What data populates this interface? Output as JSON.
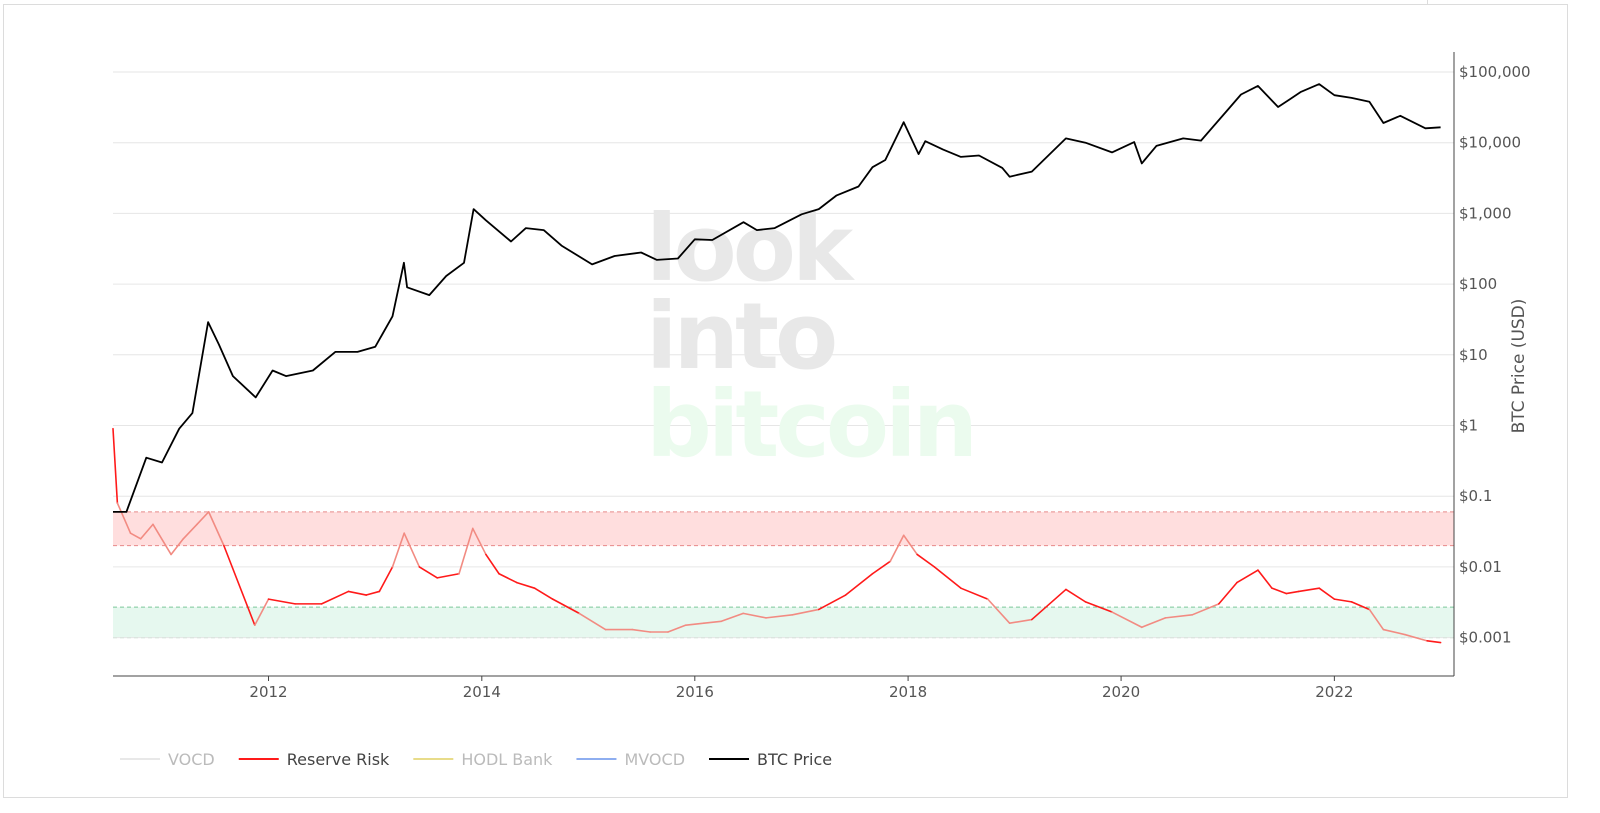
{
  "watermark": {
    "line1": "look",
    "line2": "into",
    "line3": "bitcoin"
  },
  "colors": {
    "btc_price": "#000000",
    "reserve_risk": "#ff1a1a",
    "reserve_risk_light": "#f28b82",
    "hodl_bank": "#e8dc8a",
    "mvocd": "#8eaef0",
    "vocd": "#e8e8e8",
    "red_band": "#ffdede",
    "green_band": "#e6f8ef",
    "grid": "#e6e6e6"
  },
  "chart_data": {
    "type": "line",
    "title": "",
    "xlabel": "",
    "ylabel": "BTC Price (USD)",
    "y_scale": "log",
    "ylim": [
      0.0005,
      200000
    ],
    "xlim": [
      "2010-07-17",
      "2023-02-15"
    ],
    "x_ticks": [
      "2012",
      "2014",
      "2016",
      "2018",
      "2020",
      "2022"
    ],
    "y_ticks": [
      "$100,000",
      "$10,000",
      "$1,000",
      "$100",
      "$10",
      "$1",
      "$0.1",
      "$0.01",
      "$0.001"
    ],
    "bands": [
      {
        "name": "high-risk",
        "from": 0.02,
        "to": 0.06
      },
      {
        "name": "low-risk",
        "from": 0.001,
        "to": 0.0027
      }
    ],
    "legend": {
      "placement": "bottom-left"
    },
    "series": [
      {
        "name": "VOCD",
        "visible": false,
        "x": [],
        "y": []
      },
      {
        "name": "Reserve Risk",
        "x": [
          "2010-07-17",
          "2010-08-01",
          "2010-09-15",
          "2010-10-20",
          "2010-12-01",
          "2011-02-01",
          "2011-03-15",
          "2011-05-01",
          "2011-06-10",
          "2011-08-01",
          "2011-11-15",
          "2012-01-01",
          "2012-04-01",
          "2012-07-01",
          "2012-10-01",
          "2012-12-01",
          "2013-01-15",
          "2013-03-01",
          "2013-04-10",
          "2013-06-01",
          "2013-08-01",
          "2013-10-15",
          "2013-12-01",
          "2014-01-15",
          "2014-03-01",
          "2014-05-01",
          "2014-07-01",
          "2014-09-01",
          "2014-12-01",
          "2015-03-01",
          "2015-06-01",
          "2015-08-01",
          "2015-10-01",
          "2015-12-01",
          "2016-02-01",
          "2016-04-01",
          "2016-06-15",
          "2016-09-01",
          "2016-12-01",
          "2017-03-01",
          "2017-06-01",
          "2017-09-01",
          "2017-11-01",
          "2017-12-17",
          "2018-02-01",
          "2018-04-01",
          "2018-07-01",
          "2018-10-01",
          "2018-12-15",
          "2019-03-01",
          "2019-06-26",
          "2019-09-01",
          "2019-12-01",
          "2020-03-12",
          "2020-06-01",
          "2020-09-01",
          "2020-12-01",
          "2021-02-01",
          "2021-04-14",
          "2021-06-01",
          "2021-07-20",
          "2021-09-01",
          "2021-11-10",
          "2022-01-01",
          "2022-03-01",
          "2022-05-01",
          "2022-06-18",
          "2022-09-01",
          "2022-11-15",
          "2022-12-31"
        ],
        "y": [
          0.9,
          0.08,
          0.03,
          0.025,
          0.04,
          0.015,
          0.025,
          0.04,
          0.06,
          0.02,
          0.0015,
          0.0035,
          0.003,
          0.003,
          0.0045,
          0.004,
          0.0045,
          0.01,
          0.03,
          0.01,
          0.007,
          0.008,
          0.035,
          0.015,
          0.008,
          0.006,
          0.005,
          0.0035,
          0.0022,
          0.0013,
          0.0013,
          0.0012,
          0.0012,
          0.0015,
          0.0016,
          0.0017,
          0.0022,
          0.0019,
          0.0021,
          0.0025,
          0.004,
          0.008,
          0.012,
          0.028,
          0.015,
          0.01,
          0.005,
          0.0035,
          0.0016,
          0.0018,
          0.0048,
          0.0032,
          0.0023,
          0.0014,
          0.0019,
          0.0021,
          0.003,
          0.006,
          0.009,
          0.005,
          0.0042,
          0.0045,
          0.005,
          0.0035,
          0.0032,
          0.0025,
          0.0013,
          0.0011,
          0.0009,
          0.00085
        ]
      },
      {
        "name": "HODL Bank",
        "visible": false,
        "x": [],
        "y": []
      },
      {
        "name": "MVOCD",
        "visible": false,
        "x": [],
        "y": []
      },
      {
        "name": "BTC Price",
        "x": [
          "2010-07-17",
          "2010-09-01",
          "2010-11-08",
          "2011-01-01",
          "2011-03-01",
          "2011-04-15",
          "2011-06-08",
          "2011-07-15",
          "2011-09-01",
          "2011-11-18",
          "2012-01-15",
          "2012-03-01",
          "2012-06-01",
          "2012-08-17",
          "2012-11-01",
          "2013-01-01",
          "2013-03-01",
          "2013-04-09",
          "2013-04-20",
          "2013-07-05",
          "2013-09-01",
          "2013-11-01",
          "2013-12-04",
          "2014-01-15",
          "2014-04-11",
          "2014-06-01",
          "2014-08-01",
          "2014-10-01",
          "2015-01-14",
          "2015-04-01",
          "2015-07-01",
          "2015-08-24",
          "2015-11-04",
          "2016-01-01",
          "2016-03-01",
          "2016-06-16",
          "2016-08-01",
          "2016-10-01",
          "2017-01-01",
          "2017-03-01",
          "2017-05-01",
          "2017-07-15",
          "2017-09-01",
          "2017-10-15",
          "2017-12-17",
          "2018-02-06",
          "2018-03-01",
          "2018-05-01",
          "2018-07-01",
          "2018-09-01",
          "2018-11-20",
          "2018-12-15",
          "2019-03-01",
          "2019-06-26",
          "2019-09-01",
          "2019-12-01",
          "2020-02-15",
          "2020-03-12",
          "2020-05-01",
          "2020-08-01",
          "2020-10-01",
          "2020-12-31",
          "2021-02-15",
          "2021-04-14",
          "2021-06-22",
          "2021-08-01",
          "2021-09-07",
          "2021-11-10",
          "2022-01-01",
          "2022-03-01",
          "2022-05-01",
          "2022-06-18",
          "2022-08-15",
          "2022-11-09",
          "2022-12-31"
        ],
        "y": [
          0.06,
          0.06,
          0.35,
          0.3,
          0.9,
          1.5,
          29,
          14,
          5,
          2.5,
          6,
          5,
          6,
          11,
          11,
          13,
          35,
          200,
          90,
          70,
          130,
          200,
          1150,
          800,
          400,
          620,
          580,
          350,
          190,
          250,
          280,
          220,
          230,
          430,
          420,
          750,
          580,
          620,
          970,
          1150,
          1800,
          2400,
          4500,
          5700,
          19500,
          6900,
          10500,
          8000,
          6300,
          6600,
          4400,
          3300,
          3900,
          11500,
          10000,
          7300,
          10200,
          5100,
          9000,
          11500,
          10700,
          29000,
          48000,
          63500,
          32000,
          41000,
          52000,
          67500,
          47000,
          43000,
          38000,
          19000,
          24000,
          16000,
          16500
        ]
      }
    ]
  }
}
